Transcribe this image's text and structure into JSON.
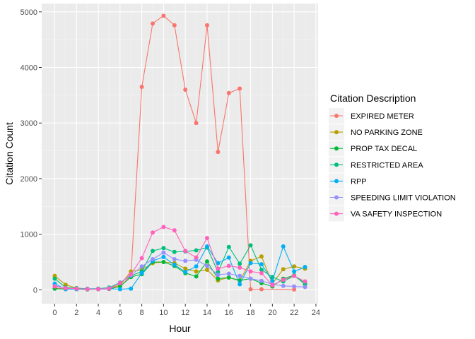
{
  "chart_data": {
    "type": "line",
    "xlabel": "Hour",
    "ylabel": "Citation Count",
    "xlim": [
      -1.2,
      24.2
    ],
    "ylim": [
      -250,
      5150
    ],
    "x_ticks": [
      0,
      2,
      4,
      6,
      8,
      10,
      12,
      14,
      16,
      18,
      20,
      22,
      24
    ],
    "x_tick_labels": [
      "0",
      "2",
      "4",
      "6",
      "8",
      "10",
      "12",
      "14",
      "16",
      "18",
      "20",
      "22",
      "24"
    ],
    "y_ticks": [
      0,
      1000,
      2000,
      3000,
      4000,
      5000
    ],
    "y_tick_labels": [
      "0",
      "1000",
      "2000",
      "3000",
      "4000",
      "5000"
    ],
    "grid": true,
    "legend": {
      "title": "Citation Description",
      "position": "right"
    },
    "series": [
      {
        "name": "EXPIRED METER",
        "color": "#F8766D",
        "points": [
          [
            0,
            30
          ],
          [
            1,
            20
          ],
          [
            2,
            15
          ],
          [
            3,
            10
          ],
          [
            4,
            10
          ],
          [
            5,
            15
          ],
          [
            6,
            60
          ],
          [
            7,
            250
          ],
          [
            8,
            3650
          ],
          [
            9,
            4790
          ],
          [
            10,
            4930
          ],
          [
            11,
            4760
          ],
          [
            12,
            3600
          ],
          [
            13,
            3000
          ],
          [
            14,
            4760
          ],
          [
            15,
            2480
          ],
          [
            16,
            3540
          ],
          [
            17,
            3620
          ],
          [
            18,
            10
          ],
          [
            19,
            10
          ],
          [
            22,
            5
          ]
        ]
      },
      {
        "name": "NO PARKING ZONE",
        "color": "#B79F00",
        "points": [
          [
            0,
            250
          ],
          [
            1,
            90
          ],
          [
            2,
            30
          ],
          [
            3,
            15
          ],
          [
            4,
            20
          ],
          [
            5,
            30
          ],
          [
            6,
            80
          ],
          [
            7,
            330
          ],
          [
            8,
            360
          ],
          [
            9,
            480
          ],
          [
            10,
            500
          ],
          [
            11,
            480
          ],
          [
            12,
            380
          ],
          [
            13,
            330
          ],
          [
            14,
            360
          ],
          [
            15,
            170
          ],
          [
            16,
            220
          ],
          [
            17,
            160
          ],
          [
            18,
            520
          ],
          [
            19,
            600
          ],
          [
            20,
            110
          ],
          [
            21,
            370
          ],
          [
            22,
            420
          ],
          [
            23,
            380
          ]
        ]
      },
      {
        "name": "PROP TAX DECAL",
        "color": "#00BA38",
        "points": [
          [
            0,
            20
          ],
          [
            1,
            10
          ],
          [
            2,
            10
          ],
          [
            3,
            5
          ],
          [
            4,
            10
          ],
          [
            5,
            15
          ],
          [
            6,
            60
          ],
          [
            7,
            230
          ],
          [
            8,
            280
          ],
          [
            9,
            500
          ],
          [
            10,
            500
          ],
          [
            11,
            430
          ],
          [
            12,
            300
          ],
          [
            13,
            240
          ],
          [
            14,
            510
          ],
          [
            15,
            200
          ],
          [
            16,
            220
          ],
          [
            17,
            170
          ],
          [
            18,
            200
          ],
          [
            19,
            120
          ],
          [
            20,
            60
          ],
          [
            21,
            200
          ],
          [
            22,
            260
          ],
          [
            23,
            100
          ]
        ]
      },
      {
        "name": "RESTRICTED AREA",
        "color": "#00BF7D",
        "points": [
          [
            0,
            200
          ],
          [
            1,
            40
          ],
          [
            2,
            30
          ],
          [
            3,
            20
          ],
          [
            4,
            20
          ],
          [
            5,
            40
          ],
          [
            6,
            130
          ],
          [
            7,
            250
          ],
          [
            8,
            330
          ],
          [
            9,
            700
          ],
          [
            10,
            750
          ],
          [
            11,
            680
          ],
          [
            12,
            690
          ],
          [
            13,
            710
          ],
          [
            14,
            760
          ],
          [
            15,
            320
          ],
          [
            16,
            770
          ],
          [
            17,
            470
          ],
          [
            18,
            800
          ],
          [
            19,
            360
          ],
          [
            20,
            230
          ],
          [
            21,
            150
          ],
          [
            22,
            250
          ],
          [
            23,
            120
          ]
        ]
      },
      {
        "name": "RPP",
        "color": "#00B0F6",
        "points": [
          [
            0,
            110
          ],
          [
            1,
            10
          ],
          [
            2,
            10
          ],
          [
            3,
            10
          ],
          [
            4,
            10
          ],
          [
            5,
            20
          ],
          [
            6,
            10
          ],
          [
            7,
            20
          ],
          [
            8,
            300
          ],
          [
            9,
            520
          ],
          [
            10,
            590
          ],
          [
            11,
            450
          ],
          [
            12,
            320
          ],
          [
            13,
            420
          ],
          [
            14,
            780
          ],
          [
            15,
            480
          ],
          [
            16,
            580
          ],
          [
            17,
            100
          ],
          [
            18,
            480
          ],
          [
            19,
            460
          ],
          [
            20,
            160
          ],
          [
            21,
            780
          ],
          [
            22,
            330
          ],
          [
            23,
            410
          ]
        ]
      },
      {
        "name": "SPEEDING LIMIT VIOLATION",
        "color": "#9590FF",
        "points": [
          [
            0,
            70
          ],
          [
            1,
            30
          ],
          [
            2,
            20
          ],
          [
            3,
            15
          ],
          [
            4,
            15
          ],
          [
            5,
            30
          ],
          [
            6,
            120
          ],
          [
            7,
            260
          ],
          [
            8,
            420
          ],
          [
            9,
            550
          ],
          [
            10,
            670
          ],
          [
            11,
            550
          ],
          [
            12,
            520
          ],
          [
            13,
            540
          ],
          [
            14,
            430
          ],
          [
            15,
            270
          ],
          [
            16,
            290
          ],
          [
            17,
            250
          ],
          [
            18,
            200
          ],
          [
            19,
            160
          ],
          [
            20,
            100
          ],
          [
            21,
            70
          ],
          [
            22,
            60
          ],
          [
            23,
            50
          ]
        ]
      },
      {
        "name": "VA SAFETY INSPECTION",
        "color": "#FF62BC",
        "points": [
          [
            0,
            60
          ],
          [
            1,
            30
          ],
          [
            2,
            20
          ],
          [
            3,
            10
          ],
          [
            4,
            10
          ],
          [
            5,
            20
          ],
          [
            6,
            120
          ],
          [
            7,
            280
          ],
          [
            8,
            570
          ],
          [
            9,
            1030
          ],
          [
            10,
            1130
          ],
          [
            11,
            1070
          ],
          [
            12,
            700
          ],
          [
            13,
            580
          ],
          [
            14,
            930
          ],
          [
            15,
            380
          ],
          [
            16,
            430
          ],
          [
            17,
            400
          ],
          [
            18,
            330
          ],
          [
            19,
            300
          ],
          [
            20,
            80
          ],
          [
            21,
            180
          ],
          [
            22,
            250
          ],
          [
            23,
            150
          ]
        ]
      }
    ]
  }
}
